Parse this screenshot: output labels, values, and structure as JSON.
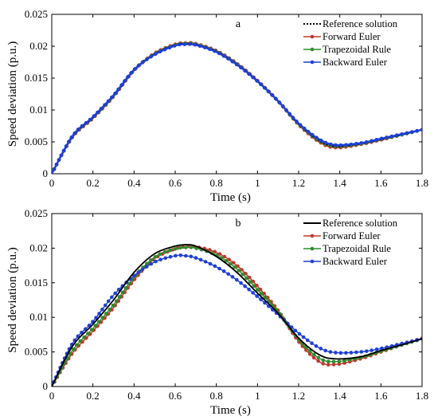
{
  "chart_data": [
    {
      "type": "line",
      "title": "a",
      "xlabel": "Time (s)",
      "ylabel": "Speed deviation (p.u.)",
      "xlim": [
        0,
        1.8
      ],
      "ylim": [
        0,
        0.025
      ],
      "xticks": [
        0,
        0.2,
        0.4,
        0.6,
        0.8,
        1,
        1.2,
        1.4,
        1.6,
        1.8
      ],
      "xtick_labels": [
        "0",
        "0.2",
        "0.4",
        "0.6",
        "0.8",
        "1",
        "1.2",
        "1.4",
        "1.6",
        "1.8"
      ],
      "yticks": [
        0,
        0.005,
        0.01,
        0.015,
        0.02,
        0.025
      ],
      "ytick_labels": [
        "0",
        "0.005",
        "0.01",
        "0.015",
        "0.02",
        "0.025"
      ],
      "grid": false,
      "legend_position": "top-right",
      "x": [
        0,
        0.1,
        0.2,
        0.3,
        0.4,
        0.5,
        0.6,
        0.65,
        0.7,
        0.8,
        0.9,
        1.0,
        1.1,
        1.2,
        1.3,
        1.38,
        1.5,
        1.6,
        1.7,
        1.8
      ],
      "series": [
        {
          "name": "Reference solution",
          "color": "#000000",
          "style": "dotted",
          "values": [
            0,
            0.0058,
            0.0088,
            0.0122,
            0.0163,
            0.0188,
            0.0202,
            0.0204,
            0.0203,
            0.0192,
            0.0172,
            0.0145,
            0.0114,
            0.0078,
            0.0052,
            0.0043,
            0.0047,
            0.0054,
            0.0061,
            0.0069
          ]
        },
        {
          "name": "Forward Euler",
          "color": "#c0392b",
          "style": "solid",
          "values": [
            0,
            0.0057,
            0.0087,
            0.0121,
            0.0162,
            0.0189,
            0.0203,
            0.0205,
            0.0204,
            0.0193,
            0.0173,
            0.0146,
            0.0114,
            0.0077,
            0.005,
            0.0041,
            0.0046,
            0.0053,
            0.0061,
            0.0069
          ]
        },
        {
          "name": "Trapezoidal Rule",
          "color": "#2e8b2e",
          "style": "solid",
          "values": [
            0,
            0.0058,
            0.0088,
            0.0122,
            0.0163,
            0.0188,
            0.0202,
            0.0204,
            0.0203,
            0.0192,
            0.0172,
            0.0145,
            0.0114,
            0.0078,
            0.0052,
            0.0043,
            0.0047,
            0.0054,
            0.0061,
            0.0069
          ]
        },
        {
          "name": "Backward Euler",
          "color": "#1f3fd6",
          "style": "solid",
          "values": [
            0,
            0.0059,
            0.0089,
            0.0123,
            0.0163,
            0.0187,
            0.0201,
            0.0203,
            0.0202,
            0.0191,
            0.0171,
            0.0145,
            0.0114,
            0.0079,
            0.0054,
            0.0045,
            0.0048,
            0.0055,
            0.0062,
            0.0069
          ]
        }
      ]
    },
    {
      "type": "line",
      "title": "b",
      "xlabel": "Time (s)",
      "ylabel": "Speed deviation (p.u.)",
      "xlim": [
        0,
        1.8
      ],
      "ylim": [
        0,
        0.025
      ],
      "xticks": [
        0,
        0.2,
        0.4,
        0.6,
        0.8,
        1,
        1.2,
        1.4,
        1.6,
        1.8
      ],
      "xtick_labels": [
        "0",
        "0.2",
        "0.4",
        "0.6",
        "0.8",
        "1",
        "1.2",
        "1.4",
        "1.6",
        "1.8"
      ],
      "yticks": [
        0,
        0.005,
        0.01,
        0.015,
        0.02,
        0.025
      ],
      "ytick_labels": [
        "0",
        "0.005",
        "0.01",
        "0.015",
        "0.02",
        "0.025"
      ],
      "grid": false,
      "legend_position": "top-right",
      "x": [
        0,
        0.1,
        0.2,
        0.3,
        0.4,
        0.5,
        0.6,
        0.65,
        0.7,
        0.8,
        0.9,
        1.0,
        1.1,
        1.2,
        1.3,
        1.38,
        1.5,
        1.6,
        1.7,
        1.8
      ],
      "series": [
        {
          "name": "Reference solution",
          "color": "#000000",
          "style": "solid",
          "values": [
            0,
            0.0058,
            0.009,
            0.0125,
            0.0165,
            0.0192,
            0.0203,
            0.0205,
            0.0203,
            0.0188,
            0.0165,
            0.0135,
            0.0106,
            0.007,
            0.0046,
            0.004,
            0.0043,
            0.0052,
            0.006,
            0.0069
          ]
        },
        {
          "name": "Forward Euler",
          "color": "#c0392b",
          "style": "solid",
          "values": [
            0,
            0.0048,
            0.008,
            0.0114,
            0.0154,
            0.0185,
            0.0199,
            0.0202,
            0.0202,
            0.0194,
            0.0175,
            0.0145,
            0.011,
            0.0065,
            0.0036,
            0.0032,
            0.004,
            0.005,
            0.006,
            0.007
          ]
        },
        {
          "name": "Trapezoidal Rule",
          "color": "#2e8b2e",
          "style": "solid",
          "values": [
            0,
            0.0052,
            0.0084,
            0.0118,
            0.0158,
            0.0187,
            0.0199,
            0.0201,
            0.02,
            0.019,
            0.017,
            0.014,
            0.0108,
            0.0068,
            0.0041,
            0.0036,
            0.0042,
            0.0051,
            0.006,
            0.0069
          ]
        },
        {
          "name": "Backward Euler",
          "color": "#1f3fd6",
          "style": "solid",
          "values": [
            0,
            0.0062,
            0.0094,
            0.0132,
            0.016,
            0.018,
            0.0189,
            0.0189,
            0.0186,
            0.0173,
            0.0154,
            0.013,
            0.0104,
            0.0077,
            0.0056,
            0.0049,
            0.005,
            0.0055,
            0.0062,
            0.0069
          ]
        }
      ]
    }
  ]
}
